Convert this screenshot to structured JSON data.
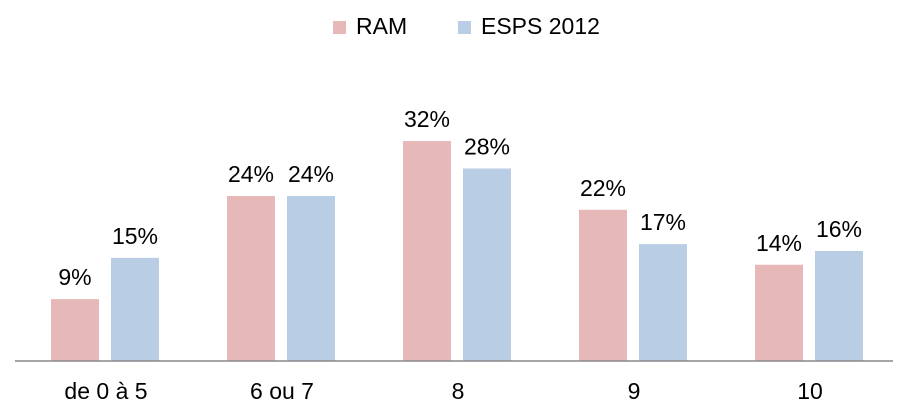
{
  "chart_data": {
    "type": "bar",
    "categories": [
      "de 0 à 5",
      "6 ou 7",
      "8",
      "9",
      "10"
    ],
    "series": [
      {
        "name": "RAM",
        "color": "#e6b9b8",
        "values": [
          9,
          24,
          32,
          22,
          14
        ],
        "value_labels": [
          "9%",
          "24%",
          "32%",
          "22%",
          "14%"
        ]
      },
      {
        "name": "ESPS 2012",
        "color": "#b9cde5",
        "values": [
          15,
          24,
          28,
          17,
          16
        ],
        "value_labels": [
          "15%",
          "24%",
          "28%",
          "17%",
          "16%"
        ]
      }
    ],
    "legend": "top"
  }
}
